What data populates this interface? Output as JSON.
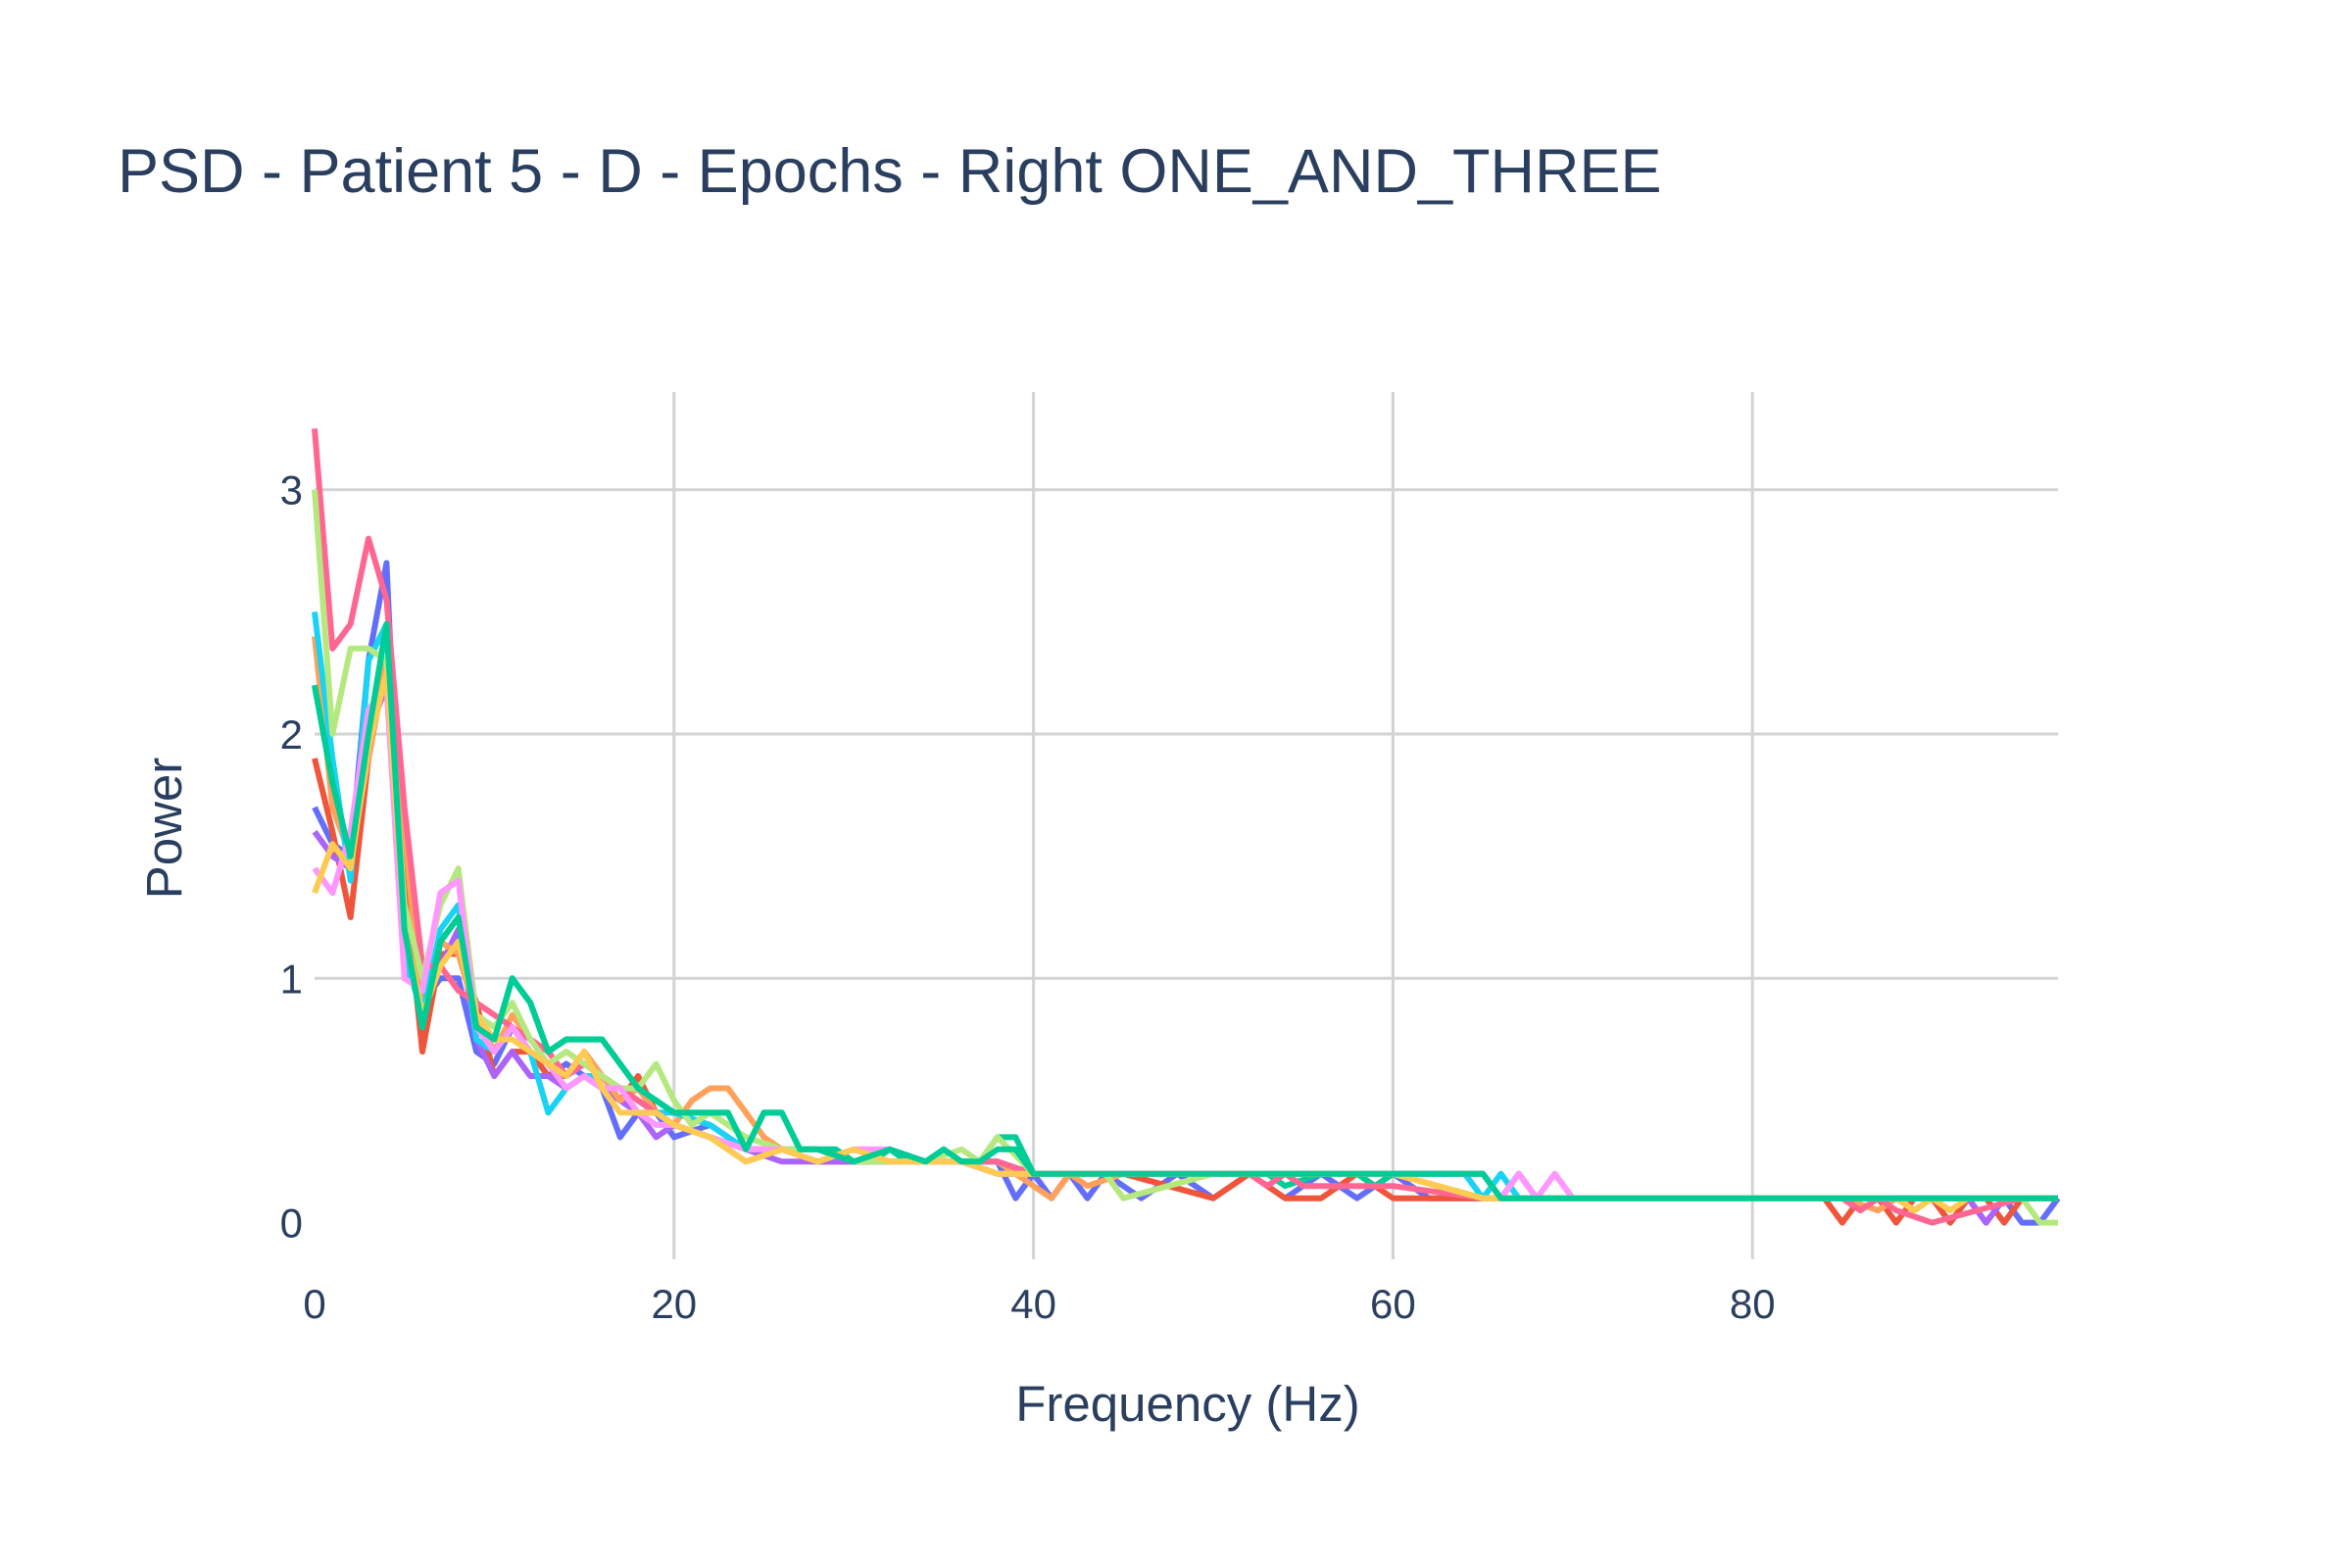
{
  "chart_data": {
    "type": "line",
    "title": "PSD - Patient 5 - D - Epochs - Right ONE_AND_THREE",
    "xlabel": "Frequency (Hz)",
    "ylabel": "Power",
    "xlim": [
      0,
      97
    ],
    "ylim": [
      -0.15,
      3.4
    ],
    "xticks": [
      0,
      20,
      40,
      60,
      80
    ],
    "yticks": [
      0,
      1,
      2,
      3
    ],
    "grid": true,
    "legend": "none",
    "series": [
      {
        "color": "#636efa",
        "x": [
          0,
          1,
          2,
          3,
          4,
          5,
          6,
          7,
          8,
          9,
          10,
          11,
          12,
          13,
          14,
          15,
          16,
          17,
          18,
          19,
          20,
          22,
          24,
          26,
          28,
          30,
          32,
          34,
          36,
          38,
          39,
          40,
          41,
          42,
          43,
          44,
          46,
          48,
          50,
          52,
          54,
          56,
          58,
          60,
          62,
          64,
          66,
          68,
          70,
          75,
          80,
          85,
          90,
          91,
          92,
          93,
          94,
          95,
          96,
          97
        ],
        "y": [
          1.7,
          1.55,
          1.5,
          2.3,
          2.7,
          1.1,
          0.9,
          1.0,
          1.0,
          0.7,
          0.65,
          0.8,
          0.7,
          0.6,
          0.65,
          0.6,
          0.55,
          0.35,
          0.45,
          0.45,
          0.35,
          0.4,
          0.3,
          0.3,
          0.25,
          0.25,
          0.3,
          0.25,
          0.25,
          0.25,
          0.1,
          0.2,
          0.1,
          0.2,
          0.1,
          0.2,
          0.1,
          0.2,
          0.1,
          0.2,
          0.1,
          0.2,
          0.1,
          0.2,
          0.1,
          0.1,
          0.1,
          0.1,
          0.1,
          0.1,
          0.1,
          0.1,
          0.1,
          0.0,
          0.1,
          0.0,
          0.1,
          0.0,
          0.0,
          0.1
        ]
      },
      {
        "color": "#ef553b",
        "x": [
          0,
          1,
          2,
          3,
          4,
          5,
          6,
          7,
          8,
          9,
          10,
          11,
          12,
          13,
          14,
          15,
          16,
          17,
          18,
          19,
          20,
          22,
          24,
          26,
          28,
          30,
          32,
          34,
          36,
          38,
          40,
          45,
          50,
          52,
          54,
          56,
          58,
          60,
          62,
          64,
          66,
          70,
          75,
          80,
          84,
          85,
          86,
          87,
          88,
          89,
          90,
          91,
          92,
          93,
          94,
          95,
          96,
          97
        ],
        "y": [
          1.9,
          1.6,
          1.25,
          1.9,
          2.3,
          1.4,
          0.7,
          1.1,
          1.1,
          0.9,
          0.6,
          0.7,
          0.7,
          0.6,
          0.6,
          0.7,
          0.6,
          0.5,
          0.6,
          0.45,
          0.4,
          0.35,
          0.25,
          0.3,
          0.25,
          0.25,
          0.25,
          0.25,
          0.25,
          0.2,
          0.2,
          0.2,
          0.1,
          0.2,
          0.1,
          0.1,
          0.2,
          0.1,
          0.1,
          0.1,
          0.1,
          0.1,
          0.1,
          0.1,
          0.1,
          0.0,
          0.1,
          0.1,
          0.0,
          0.1,
          0.1,
          0.0,
          0.1,
          0.1,
          0.0,
          0.1,
          0.1,
          0.1
        ]
      },
      {
        "color": "#00cc96",
        "x": [
          0,
          1,
          2,
          3,
          4,
          5,
          6,
          7,
          8,
          9,
          10,
          11,
          12,
          13,
          14,
          15,
          16,
          17,
          18,
          19,
          20,
          22,
          23,
          24,
          25,
          26,
          27,
          28,
          29,
          30,
          31,
          32,
          33,
          34,
          35,
          36,
          37,
          38,
          39,
          40,
          42,
          44,
          46,
          48,
          50,
          52,
          53,
          54,
          56,
          58,
          59,
          60,
          62,
          64,
          65,
          66,
          70,
          75,
          80,
          85,
          90,
          95,
          97
        ],
        "y": [
          2.2,
          1.8,
          1.5,
          2.0,
          2.45,
          1.2,
          0.8,
          1.15,
          1.25,
          0.8,
          0.75,
          1.0,
          0.9,
          0.7,
          0.75,
          0.75,
          0.75,
          0.65,
          0.55,
          0.5,
          0.45,
          0.45,
          0.45,
          0.3,
          0.45,
          0.45,
          0.3,
          0.3,
          0.3,
          0.25,
          0.25,
          0.3,
          0.25,
          0.25,
          0.3,
          0.25,
          0.25,
          0.35,
          0.35,
          0.2,
          0.2,
          0.2,
          0.2,
          0.2,
          0.2,
          0.2,
          0.2,
          0.15,
          0.2,
          0.2,
          0.15,
          0.2,
          0.2,
          0.2,
          0.2,
          0.1,
          0.1,
          0.1,
          0.1,
          0.1,
          0.1,
          0.1,
          0.1
        ]
      },
      {
        "color": "#ab63fa",
        "x": [
          0,
          1,
          2,
          3,
          4,
          5,
          6,
          7,
          8,
          9,
          10,
          11,
          12,
          13,
          14,
          15,
          16,
          17,
          18,
          19,
          20,
          22,
          24,
          26,
          28,
          30,
          32,
          34,
          36,
          38,
          40,
          45,
          50,
          55,
          60,
          65,
          66,
          67,
          68,
          69,
          70,
          75,
          80,
          85,
          90,
          92,
          93,
          94,
          97
        ],
        "y": [
          1.6,
          1.5,
          1.45,
          2.0,
          2.2,
          1.05,
          0.9,
          1.05,
          1.2,
          0.75,
          0.6,
          0.7,
          0.6,
          0.6,
          0.55,
          0.6,
          0.55,
          0.5,
          0.45,
          0.35,
          0.4,
          0.35,
          0.3,
          0.25,
          0.25,
          0.25,
          0.25,
          0.25,
          0.25,
          0.2,
          0.2,
          0.2,
          0.2,
          0.2,
          0.2,
          0.2,
          0.1,
          0.2,
          0.1,
          0.1,
          0.1,
          0.1,
          0.1,
          0.1,
          0.1,
          0.1,
          0.0,
          0.1,
          0.1
        ]
      },
      {
        "color": "#ffa15a",
        "x": [
          0,
          1,
          2,
          3,
          4,
          5,
          6,
          7,
          8,
          9,
          10,
          11,
          12,
          13,
          14,
          15,
          16,
          17,
          18,
          19,
          20,
          21,
          22,
          23,
          24,
          25,
          26,
          28,
          30,
          32,
          34,
          36,
          38,
          40,
          41,
          42,
          43,
          45,
          50,
          55,
          60,
          65,
          70,
          75,
          80,
          85,
          87,
          88,
          89,
          90,
          95,
          97
        ],
        "y": [
          2.4,
          1.7,
          1.5,
          1.9,
          2.3,
          1.6,
          0.85,
          1.15,
          1.1,
          0.85,
          0.7,
          0.85,
          0.75,
          0.7,
          0.6,
          0.7,
          0.6,
          0.5,
          0.55,
          0.45,
          0.4,
          0.5,
          0.55,
          0.55,
          0.45,
          0.35,
          0.3,
          0.25,
          0.3,
          0.25,
          0.25,
          0.25,
          0.25,
          0.15,
          0.1,
          0.2,
          0.15,
          0.2,
          0.2,
          0.2,
          0.2,
          0.1,
          0.1,
          0.1,
          0.1,
          0.1,
          0.05,
          0.1,
          0.05,
          0.1,
          0.1,
          0.1
        ]
      },
      {
        "color": "#19d3f3",
        "x": [
          0,
          1,
          2,
          3,
          4,
          5,
          6,
          7,
          8,
          9,
          10,
          11,
          12,
          13,
          14,
          15,
          16,
          17,
          18,
          19,
          20,
          22,
          24,
          26,
          28,
          30,
          32,
          34,
          36,
          38,
          40,
          45,
          50,
          55,
          60,
          62,
          63,
          64,
          65,
          66,
          67,
          68,
          70,
          75,
          80,
          85,
          90,
          95,
          97
        ],
        "y": [
          2.5,
          1.9,
          1.4,
          2.3,
          2.45,
          1.1,
          0.85,
          1.2,
          1.3,
          0.75,
          0.7,
          0.8,
          0.7,
          0.45,
          0.55,
          0.6,
          0.6,
          0.55,
          0.5,
          0.45,
          0.45,
          0.4,
          0.3,
          0.3,
          0.3,
          0.25,
          0.25,
          0.25,
          0.25,
          0.25,
          0.2,
          0.2,
          0.2,
          0.2,
          0.2,
          0.2,
          0.2,
          0.2,
          0.1,
          0.2,
          0.1,
          0.1,
          0.1,
          0.1,
          0.1,
          0.1,
          0.1,
          0.1,
          0.1
        ]
      },
      {
        "color": "#ff6692",
        "x": [
          0,
          1,
          2,
          3,
          4,
          5,
          6,
          7,
          8,
          9,
          10,
          11,
          12,
          13,
          14,
          15,
          16,
          17,
          18,
          19,
          20,
          22,
          24,
          26,
          28,
          30,
          32,
          34,
          36,
          38,
          40,
          45,
          50,
          52,
          53,
          54,
          55,
          60,
          65,
          70,
          75,
          80,
          85,
          86,
          87,
          88,
          90,
          95,
          97
        ],
        "y": [
          3.25,
          2.35,
          2.45,
          2.8,
          2.55,
          1.7,
          1.05,
          1.05,
          0.95,
          0.9,
          0.85,
          0.8,
          0.75,
          0.7,
          0.6,
          0.65,
          0.6,
          0.55,
          0.5,
          0.45,
          0.4,
          0.35,
          0.3,
          0.3,
          0.3,
          0.25,
          0.25,
          0.25,
          0.25,
          0.25,
          0.2,
          0.2,
          0.2,
          0.2,
          0.15,
          0.2,
          0.15,
          0.15,
          0.1,
          0.1,
          0.1,
          0.1,
          0.1,
          0.05,
          0.1,
          0.05,
          0.0,
          0.1,
          0.1
        ]
      },
      {
        "color": "#b6e880",
        "x": [
          0,
          1,
          2,
          3,
          4,
          5,
          6,
          7,
          8,
          9,
          10,
          11,
          12,
          13,
          14,
          15,
          16,
          17,
          18,
          19,
          20,
          21,
          22,
          24,
          26,
          28,
          30,
          32,
          34,
          36,
          37,
          38,
          40,
          44,
          45,
          50,
          55,
          60,
          65,
          70,
          75,
          80,
          85,
          90,
          95,
          96,
          97
        ],
        "y": [
          3.0,
          2.0,
          2.35,
          2.35,
          2.3,
          1.3,
          1.0,
          1.3,
          1.45,
          0.85,
          0.8,
          0.9,
          0.75,
          0.65,
          0.7,
          0.65,
          0.6,
          0.55,
          0.55,
          0.65,
          0.5,
          0.4,
          0.45,
          0.35,
          0.3,
          0.3,
          0.25,
          0.25,
          0.25,
          0.3,
          0.25,
          0.35,
          0.2,
          0.2,
          0.1,
          0.2,
          0.2,
          0.2,
          0.1,
          0.1,
          0.1,
          0.1,
          0.1,
          0.1,
          0.1,
          0.0,
          0.0
        ]
      },
      {
        "color": "#ff97ff",
        "x": [
          0,
          1,
          2,
          3,
          4,
          5,
          6,
          7,
          8,
          9,
          10,
          11,
          12,
          13,
          14,
          15,
          16,
          17,
          18,
          19,
          20,
          22,
          24,
          26,
          28,
          30,
          32,
          34,
          36,
          38,
          40,
          45,
          50,
          55,
          60,
          65,
          66,
          67,
          68,
          69,
          70,
          75,
          80,
          85,
          90,
          95,
          97
        ],
        "y": [
          1.45,
          1.35,
          1.6,
          2.1,
          2.2,
          1.0,
          0.95,
          1.35,
          1.4,
          0.8,
          0.7,
          0.8,
          0.7,
          0.65,
          0.55,
          0.6,
          0.55,
          0.55,
          0.45,
          0.4,
          0.4,
          0.35,
          0.3,
          0.3,
          0.25,
          0.3,
          0.3,
          0.25,
          0.25,
          0.2,
          0.2,
          0.2,
          0.2,
          0.2,
          0.2,
          0.2,
          0.1,
          0.2,
          0.1,
          0.2,
          0.1,
          0.1,
          0.1,
          0.1,
          0.1,
          0.1,
          0.1
        ]
      },
      {
        "color": "#fecb52",
        "x": [
          0,
          1,
          2,
          3,
          4,
          5,
          6,
          7,
          8,
          9,
          10,
          11,
          12,
          13,
          14,
          15,
          16,
          17,
          18,
          19,
          20,
          22,
          24,
          26,
          28,
          30,
          32,
          34,
          36,
          38,
          40,
          45,
          50,
          55,
          60,
          65,
          70,
          75,
          80,
          85,
          88,
          89,
          90,
          91,
          92,
          93,
          95,
          97
        ],
        "y": [
          1.35,
          1.55,
          1.45,
          1.95,
          2.25,
          1.2,
          0.85,
          1.05,
          1.15,
          0.85,
          0.75,
          0.75,
          0.7,
          0.65,
          0.6,
          0.7,
          0.55,
          0.45,
          0.45,
          0.45,
          0.4,
          0.35,
          0.25,
          0.3,
          0.25,
          0.3,
          0.25,
          0.25,
          0.25,
          0.2,
          0.2,
          0.2,
          0.2,
          0.2,
          0.2,
          0.1,
          0.1,
          0.1,
          0.1,
          0.1,
          0.1,
          0.05,
          0.1,
          0.05,
          0.1,
          0.1,
          0.1,
          0.1
        ]
      },
      {
        "color": "#00cc96",
        "x": [
          0,
          1,
          2,
          3,
          4,
          5,
          6,
          7,
          8,
          9,
          10,
          11,
          12,
          13,
          14,
          15,
          16,
          17,
          18,
          19,
          20,
          22,
          23,
          24,
          25,
          26,
          27,
          28,
          30,
          32,
          34,
          35,
          36,
          37,
          38,
          39,
          40,
          45,
          50,
          55,
          60,
          64,
          65,
          66,
          70,
          75,
          80,
          85,
          90,
          95,
          97
        ],
        "y": [
          2.2,
          1.8,
          1.5,
          2.0,
          2.45,
          1.2,
          0.8,
          1.15,
          1.25,
          0.8,
          0.75,
          1.0,
          0.9,
          0.7,
          0.75,
          0.75,
          0.75,
          0.65,
          0.55,
          0.5,
          0.45,
          0.45,
          0.45,
          0.3,
          0.45,
          0.45,
          0.3,
          0.3,
          0.25,
          0.3,
          0.25,
          0.3,
          0.25,
          0.25,
          0.3,
          0.3,
          0.2,
          0.2,
          0.2,
          0.2,
          0.2,
          0.2,
          0.2,
          0.1,
          0.1,
          0.1,
          0.1,
          0.1,
          0.1,
          0.1,
          0.1
        ]
      }
    ]
  }
}
